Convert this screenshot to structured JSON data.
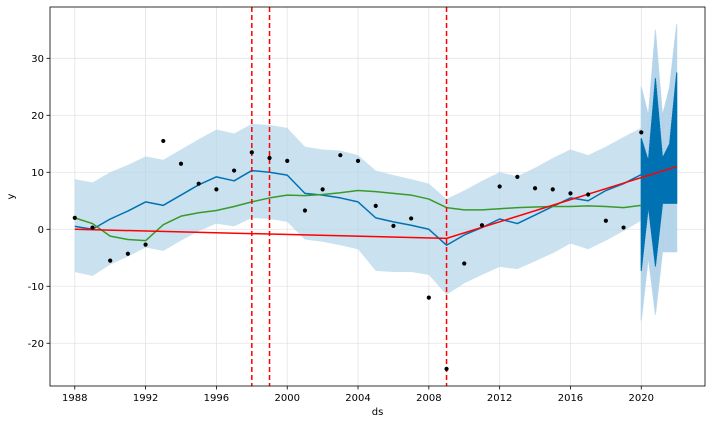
{
  "chart_data": {
    "type": "line",
    "title": "",
    "xlabel": "ds",
    "ylabel": "y",
    "xlim": [
      1986.6,
      2023.6
    ],
    "ylim": [
      -27.5,
      39
    ],
    "x_ticks": [
      "1988",
      "1992",
      "1996",
      "2000",
      "2004",
      "2008",
      "2012",
      "2016",
      "2020"
    ],
    "y_ticks": [
      "-20",
      "-10",
      "0",
      "10",
      "20",
      "30"
    ],
    "grid": true,
    "colors": {
      "forecast": "#0072B2",
      "band": "#B5D5EA",
      "trend": "#FF0000",
      "changepoints": "#FF0000",
      "green": "#3A9A29",
      "points": "#000000"
    },
    "changepoints": [
      1998,
      1999,
      2009
    ],
    "observed": {
      "x": [
        1988,
        1989,
        1990,
        1991,
        1992,
        1993,
        1994,
        1995,
        1996,
        1997,
        1998,
        1999,
        2000,
        2001,
        2002,
        2003,
        2004,
        2005,
        2006,
        2007,
        2008,
        2009,
        2010,
        2011,
        2012,
        2013,
        2014,
        2015,
        2016,
        2017,
        2018,
        2019,
        2020
      ],
      "y": [
        2.0,
        0.3,
        -5.5,
        -4.3,
        -2.7,
        15.5,
        11.5,
        8.0,
        7.0,
        10.3,
        13.5,
        12.5,
        12.0,
        3.3,
        7.0,
        13.0,
        12.0,
        4.1,
        0.6,
        1.9,
        -12.0,
        -24.5,
        -6.0,
        0.7,
        7.5,
        9.2,
        7.2,
        7.0,
        6.3,
        6.1,
        1.5,
        0.3,
        17.0
      ]
    },
    "series": [
      {
        "type": "line",
        "x": [
          1988,
          1989,
          1990,
          1991,
          1992,
          1993,
          1994,
          1995,
          1996,
          1997,
          1998,
          1999,
          2000,
          2001,
          2002,
          2003,
          2004,
          2005,
          2006,
          2007,
          2008,
          2009,
          2010,
          2011,
          2012,
          2013,
          2014,
          2015,
          2016,
          2017,
          2018,
          2019,
          2020
        ],
        "y": [
          0.5,
          0.0,
          1.8,
          3.2,
          4.8,
          4.2,
          6.0,
          7.8,
          9.2,
          8.5,
          10.3,
          10.0,
          9.5,
          6.3,
          6.0,
          5.5,
          4.8,
          2.0,
          1.3,
          0.7,
          0.0,
          -2.8,
          -1.0,
          0.3,
          1.8,
          1.0,
          2.5,
          4.0,
          5.5,
          5.0,
          6.8,
          8.0,
          9.6
        ]
      },
      {
        "type": "line",
        "x": [
          1988,
          2009,
          2022
        ],
        "y": [
          0.0,
          -1.6,
          11.0
        ]
      },
      {
        "type": "line",
        "x": [
          1988,
          1989,
          1990,
          1991,
          1992,
          1993,
          1994,
          1995,
          1996,
          1997,
          1998,
          1999,
          2000,
          2001,
          2002,
          2003,
          2004,
          2005,
          2006,
          2007,
          2008,
          2009,
          2010,
          2011,
          2012,
          2013,
          2014,
          2015,
          2016,
          2017,
          2018,
          2019,
          2020
        ],
        "y": [
          2.0,
          1.0,
          -1.2,
          -1.8,
          -2.0,
          0.8,
          2.3,
          2.9,
          3.3,
          4.0,
          4.8,
          5.5,
          6.0,
          5.9,
          6.1,
          6.4,
          6.8,
          6.6,
          6.3,
          6.0,
          5.3,
          3.8,
          3.4,
          3.4,
          3.6,
          3.8,
          3.9,
          4.0,
          4.0,
          4.1,
          4.0,
          3.8,
          4.2
        ]
      },
      {
        "type": "area",
        "x": [
          1988,
          1989,
          1990,
          1991,
          1992,
          1993,
          1994,
          1995,
          1996,
          1997,
          1998,
          1999,
          2000,
          2001,
          2002,
          2003,
          2004,
          2005,
          2006,
          2007,
          2008,
          2009,
          2010,
          2011,
          2012,
          2013,
          2014,
          2015,
          2016,
          2017,
          2018,
          2019,
          2020
        ],
        "upper": [
          8.8,
          8.2,
          10.0,
          11.3,
          12.8,
          12.2,
          14.0,
          15.8,
          17.5,
          16.8,
          18.5,
          18.3,
          17.8,
          14.5,
          14.0,
          13.8,
          13.0,
          10.3,
          9.5,
          8.8,
          8.0,
          5.3,
          6.8,
          8.5,
          10.0,
          9.3,
          10.8,
          12.5,
          14.0,
          13.0,
          14.5,
          16.2,
          17.8
        ],
        "lower": [
          -7.5,
          -8.2,
          -6.2,
          -4.8,
          -3.2,
          -3.8,
          -2.0,
          -0.3,
          1.0,
          0.5,
          2.0,
          1.8,
          1.3,
          -1.8,
          -2.2,
          -2.8,
          -3.5,
          -7.3,
          -7.5,
          -7.5,
          -8.0,
          -11.5,
          -9.5,
          -8.0,
          -6.6,
          -7.0,
          -5.6,
          -4.2,
          -2.5,
          -3.5,
          -2.0,
          -0.3,
          1.5
        ]
      }
    ],
    "forecast_cluster": {
      "x": [
        2020.0,
        2020.4,
        2020.8,
        2021.2,
        2021.6,
        2022.0
      ],
      "low": [
        -7.3,
        4.0,
        -6.5,
        4.5,
        4.5,
        4.5
      ],
      "high": [
        16.0,
        12.0,
        26.5,
        12.5,
        15.0,
        27.5
      ],
      "band_low": [
        -16.0,
        -5.0,
        -15.0,
        -4.0,
        -4.0,
        -4.0
      ],
      "band_high": [
        25.0,
        20.0,
        35.0,
        20.0,
        25.0,
        36.0
      ]
    }
  }
}
